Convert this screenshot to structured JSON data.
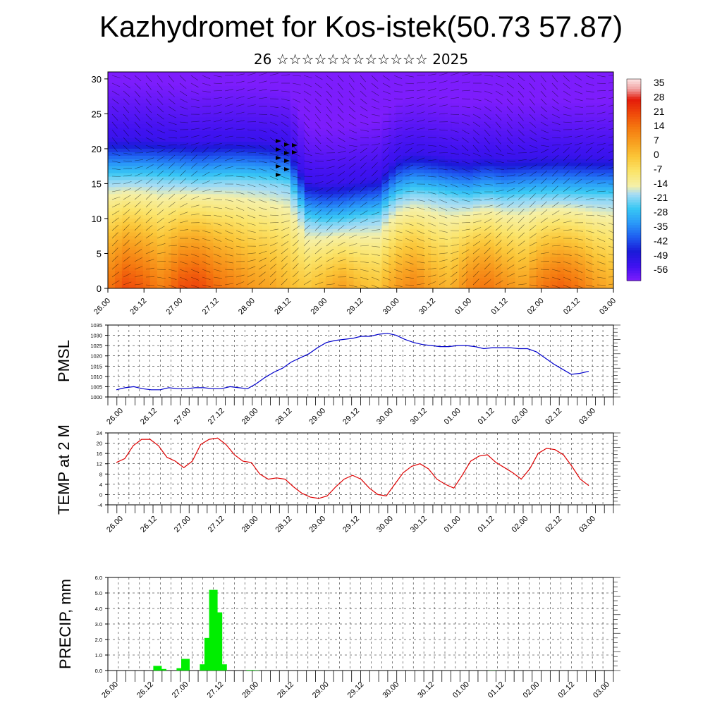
{
  "title": "Kazhydromet for Kos-istek(50.73 57.87)",
  "subtitle": "26 ☆☆☆☆☆☆☆☆☆☆☆☆ 2025",
  "x_ticks": [
    "26.00",
    "26.12",
    "27.00",
    "27.12",
    "28.00",
    "28.12",
    "29.00",
    "29.12",
    "30.00",
    "30.12",
    "01.00",
    "01.12",
    "02.00",
    "02.12",
    "03.00"
  ],
  "colors": {
    "pmsl": "#0000cc",
    "temp": "#dd0000",
    "precip": "#00ee00"
  },
  "chart_data": [
    {
      "type": "heatmap",
      "title": "",
      "xlabel": "",
      "ylabel": "",
      "ylim": [
        0,
        31
      ],
      "y_ticks": [
        "0",
        "5",
        "10",
        "15",
        "20",
        "25",
        "30"
      ],
      "colorbar_labels": [
        "35",
        "28",
        "21",
        "14",
        "7",
        "0",
        "-7",
        "-14",
        "-21",
        "-28",
        "-35",
        "-42",
        "-49",
        "-56"
      ],
      "colorbar_range": [
        -60,
        38
      ],
      "description_values": "air temperature (°C) by height, with wind barbs",
      "tropopause_height": [
        15.5,
        15.5,
        15.5,
        15.3,
        15.2,
        15.0,
        15.2,
        15.3,
        15.2,
        15.0,
        14.6,
        9.5,
        9.0,
        9.2,
        9.6,
        10.0,
        12.8,
        13.5,
        13.2,
        12.8,
        12.5,
        13.0,
        12.6,
        12.8,
        12.9,
        13.0,
        12.9,
        12.8,
        12.8
      ],
      "surface_temp": [
        14,
        21,
        18,
        12,
        20,
        22,
        16,
        12,
        8,
        6,
        2,
        -1,
        3,
        7,
        2,
        0,
        8,
        12,
        6,
        3,
        12,
        15,
        10,
        6,
        14,
        18,
        15,
        8,
        4
      ]
    },
    {
      "type": "line",
      "ylabel": "PMSL",
      "ylim": [
        1000,
        1035
      ],
      "y_ticks": [
        "1000",
        "1005",
        "1010",
        "1015",
        "1020",
        "1025",
        "1030",
        "1035"
      ],
      "series": [
        {
          "values": [
            1003.5,
            1004.5,
            1005,
            1004,
            1003.5,
            1003.5,
            1004.5,
            1004,
            1004,
            1004.5,
            1004.5,
            1004,
            1004,
            1005,
            1004.5,
            1004,
            1006.5,
            1009.5,
            1012,
            1014,
            1017,
            1019,
            1021,
            1024,
            1026.5,
            1027.5,
            1028,
            1028.5,
            1029.5,
            1029.5,
            1030.5,
            1031,
            1030,
            1028,
            1026.5,
            1025.5,
            1025,
            1024.5,
            1024.5,
            1025,
            1025,
            1024.5,
            1023.5,
            1024,
            1024,
            1024,
            1023.5,
            1023.5,
            1022,
            1019,
            1016,
            1013.5,
            1011,
            1011.5,
            1012.5
          ]
        }
      ]
    },
    {
      "type": "line",
      "ylabel": "TEMP at 2 M",
      "ylim": [
        -4,
        24
      ],
      "y_ticks": [
        "-4",
        "0",
        "4",
        "8",
        "12",
        "16",
        "20",
        "24"
      ],
      "series": [
        {
          "values": [
            12.5,
            14,
            19,
            21.5,
            21.5,
            19,
            14.5,
            13,
            10.5,
            13,
            19.5,
            21.5,
            22,
            19.5,
            15.5,
            13,
            12.5,
            8,
            6,
            6.5,
            6,
            3,
            0.5,
            -1,
            -1.5,
            -0.5,
            3,
            6,
            7.5,
            6,
            2.5,
            0,
            -0.5,
            4,
            8.5,
            11,
            12,
            10,
            6,
            4,
            2.5,
            7.5,
            13,
            15,
            15.5,
            12.5,
            10.5,
            8.5,
            6,
            10,
            16,
            18,
            17.5,
            15.5,
            11,
            6,
            3.5
          ]
        }
      ]
    },
    {
      "type": "bar",
      "ylabel": "PRECIP, mm",
      "ylim": [
        0,
        6
      ],
      "y_ticks": [
        "0.0",
        "1.0",
        "2.0",
        "3.0",
        "4.0",
        "5.0",
        "6.0"
      ],
      "bin_width_hours": 3,
      "values": [
        0,
        0,
        0,
        0,
        0,
        0,
        0,
        0,
        0,
        0.3,
        0.1,
        0,
        0,
        0,
        0.15,
        0.75,
        0,
        0,
        0,
        0.4,
        2.1,
        5.2,
        3.75,
        0.4,
        0,
        0,
        0,
        0,
        0,
        0.03,
        0.02,
        0,
        0,
        0,
        0,
        0,
        0,
        0,
        0,
        0,
        0,
        0,
        0,
        0,
        0,
        0,
        0,
        0,
        0,
        0,
        0,
        0,
        0,
        0,
        0,
        0,
        0,
        0,
        0,
        0,
        0,
        0,
        0,
        0,
        0,
        0,
        0,
        0,
        0,
        0,
        0,
        0,
        0,
        0,
        0,
        0,
        0,
        0,
        0,
        0,
        0,
        0.01,
        0,
        0,
        0,
        0,
        0,
        0,
        0,
        0,
        0,
        0,
        0,
        0,
        0,
        0,
        0,
        0
      ]
    }
  ]
}
